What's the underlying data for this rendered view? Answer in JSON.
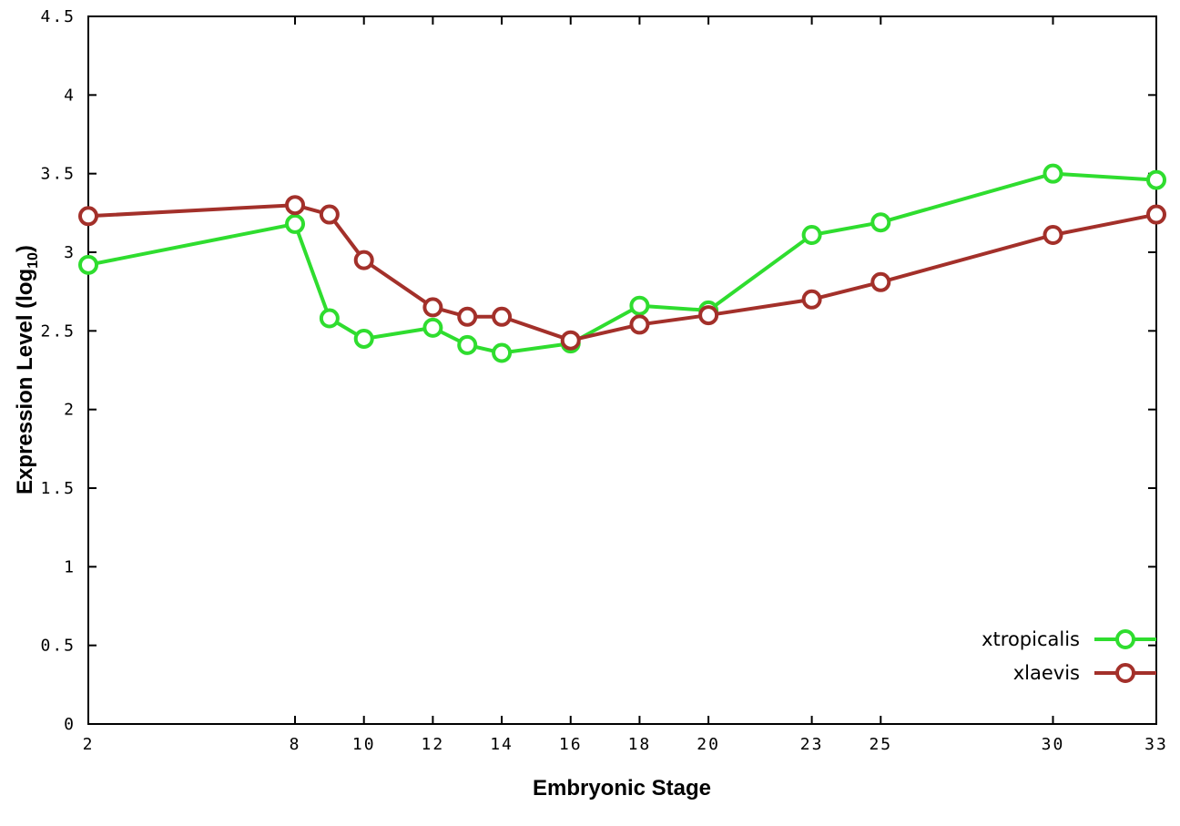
{
  "chart_data": {
    "type": "line",
    "title": "",
    "xlabel": "Embryonic Stage",
    "ylabel_pre": "Expression Level (log",
    "ylabel_sub": "10",
    "ylabel_post": ")",
    "xlim": [
      2,
      33
    ],
    "ylim": [
      0,
      4.5
    ],
    "x_ticks": [
      2,
      8,
      10,
      12,
      14,
      16,
      18,
      20,
      23,
      25,
      30,
      33
    ],
    "y_ticks": [
      0,
      0.5,
      1,
      1.5,
      2,
      2.5,
      3,
      3.5,
      4,
      4.5
    ],
    "y_tick_labels": [
      "0",
      "0.5",
      "1",
      "1.5",
      "2",
      "2.5",
      "3",
      "3.5",
      "4",
      "4.5"
    ],
    "grid": false,
    "legend_position": "bottom-right-inside",
    "x": [
      2,
      8,
      9,
      10,
      12,
      13,
      14,
      16,
      18,
      20,
      23,
      25,
      30,
      33
    ],
    "series": [
      {
        "name": "xtropicalis",
        "color": "#2fdd2f",
        "values": [
          2.92,
          3.18,
          2.58,
          2.45,
          2.52,
          2.41,
          2.36,
          2.42,
          2.66,
          2.63,
          3.11,
          3.19,
          3.5,
          3.46
        ]
      },
      {
        "name": "xlaevis",
        "color": "#a3302a",
        "values": [
          3.23,
          3.3,
          3.24,
          2.95,
          2.65,
          2.59,
          2.59,
          2.44,
          2.54,
          2.6,
          2.7,
          2.81,
          3.11,
          3.24
        ]
      }
    ]
  }
}
